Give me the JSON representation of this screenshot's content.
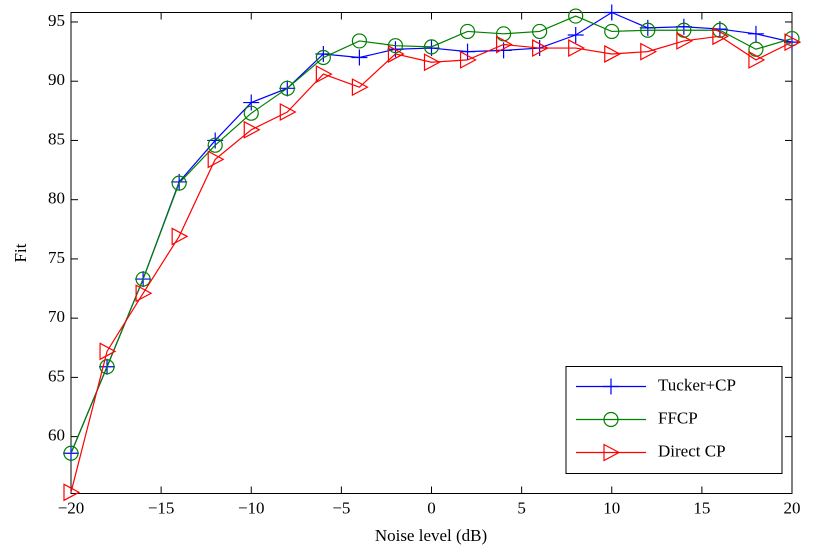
{
  "chart_data": {
    "type": "line",
    "x_label": "Noise level (dB)",
    "y_label": "Fit",
    "x": [
      -20,
      -18,
      -16,
      -14,
      -12,
      -10,
      -8,
      -6,
      -4,
      -2,
      0,
      2,
      4,
      6,
      8,
      10,
      12,
      14,
      16,
      18,
      20
    ],
    "series": [
      {
        "name": "Tucker+CP",
        "color": "#0000ff",
        "marker": "plus",
        "values": [
          58.6,
          65.9,
          73.3,
          81.5,
          85.0,
          88.2,
          89.4,
          92.3,
          92.0,
          92.7,
          92.8,
          92.5,
          92.6,
          92.8,
          93.9,
          95.8,
          94.5,
          94.6,
          94.4,
          94.0,
          93.3
        ]
      },
      {
        "name": "FFCP",
        "color": "#008000",
        "marker": "circle",
        "values": [
          58.6,
          65.9,
          73.3,
          81.4,
          84.6,
          87.3,
          89.4,
          92.0,
          93.4,
          93.0,
          92.9,
          94.2,
          94.0,
          94.2,
          95.5,
          94.2,
          94.3,
          94.3,
          94.3,
          92.7,
          93.6
        ]
      },
      {
        "name": "Direct CP",
        "color": "#ff0000",
        "marker": "triangle-right",
        "values": [
          55.3,
          67.2,
          72.1,
          76.9,
          83.4,
          85.9,
          87.4,
          90.6,
          89.5,
          92.3,
          91.6,
          91.8,
          93.1,
          92.8,
          92.8,
          92.3,
          92.5,
          93.4,
          93.8,
          91.8,
          93.3
        ]
      }
    ],
    "xlim": [
      -20,
      20
    ],
    "xticks": [
      {
        "value": -20,
        "label": "−20"
      },
      {
        "value": -15,
        "label": "−15"
      },
      {
        "value": -10,
        "label": "−10"
      },
      {
        "value": -5,
        "label": "−5"
      },
      0,
      5,
      10,
      15,
      20
    ],
    "ylim": [
      55.2,
      95.8
    ],
    "yticks": [
      60,
      65,
      70,
      75,
      80,
      85,
      90,
      95
    ],
    "legend": "lower right",
    "grid": false
  }
}
